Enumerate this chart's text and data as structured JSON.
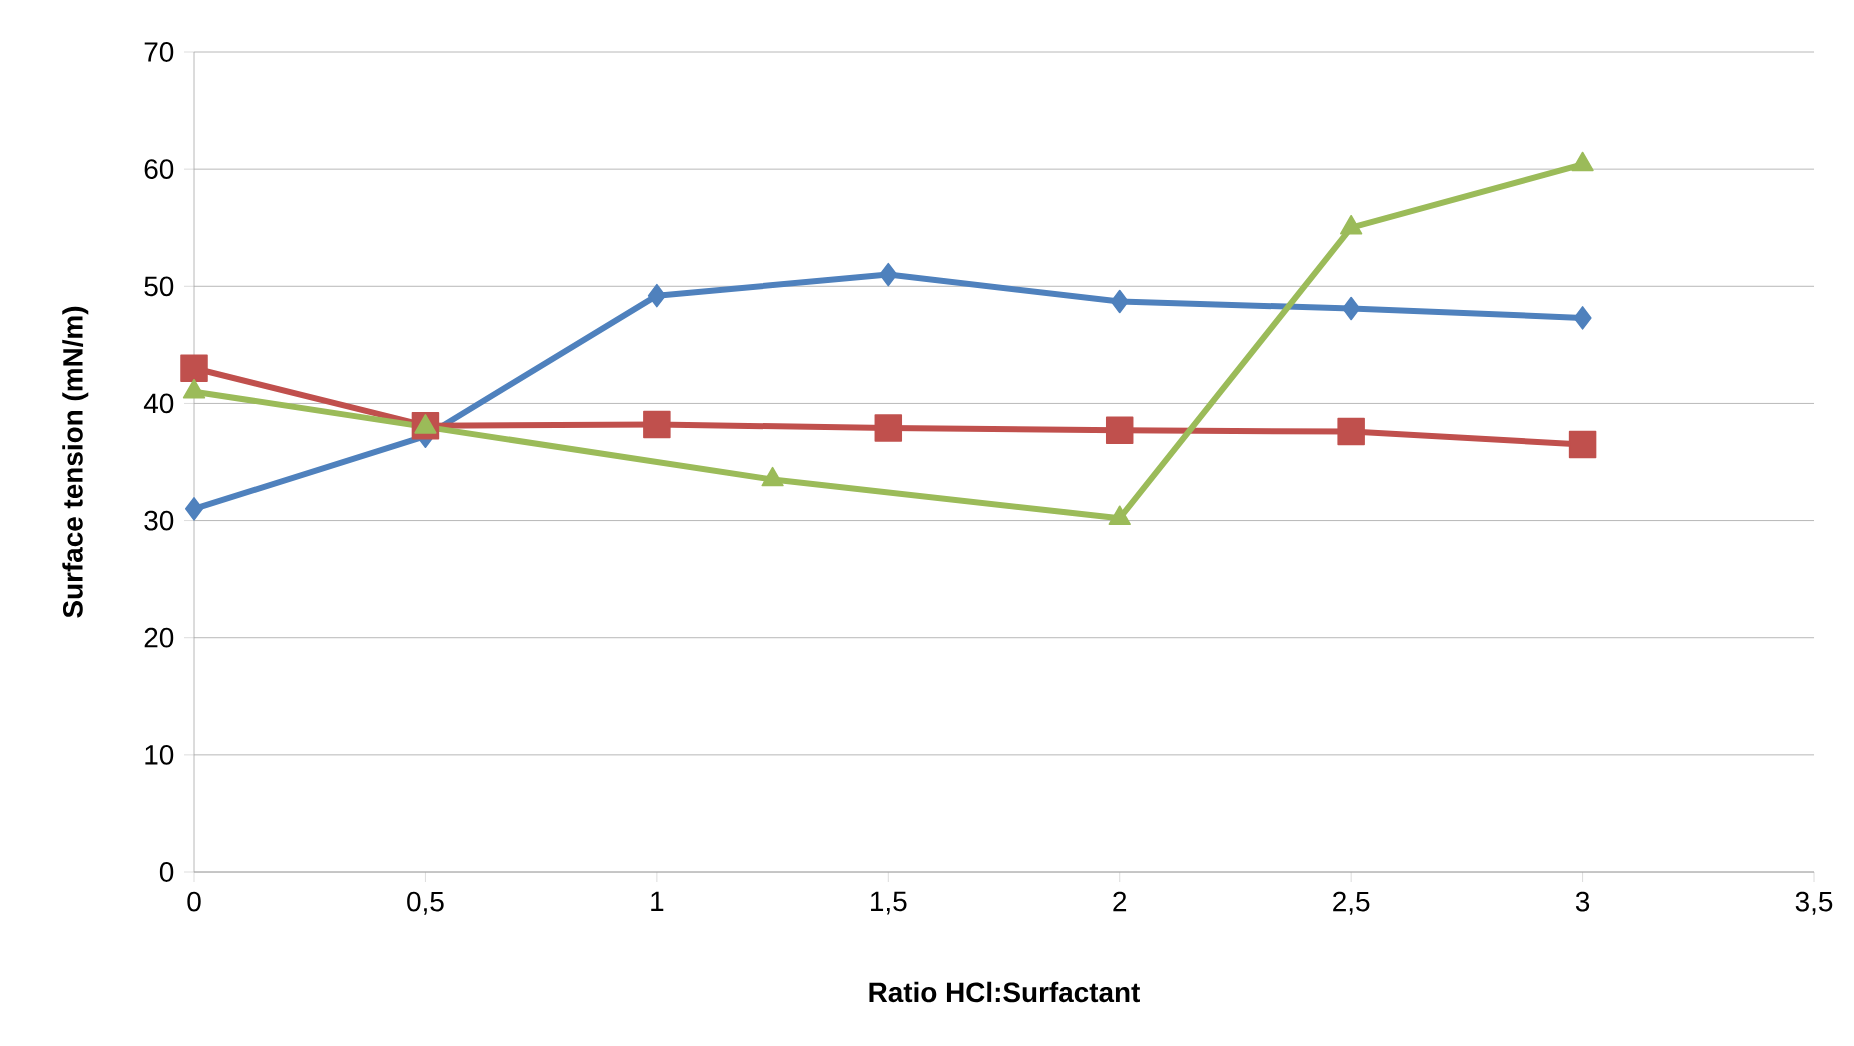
{
  "chart_data": {
    "type": "line",
    "xlabel": "Ratio HCl:Surfactant",
    "ylabel": "Surface tension (mN/m)",
    "series": [
      {
        "color": "#4f81bd",
        "marker": "diamond",
        "x": [
          0,
          0.5,
          1,
          1.5,
          2,
          2.5,
          3
        ],
        "values": [
          31,
          37.2,
          49.2,
          51,
          48.7,
          48.1,
          47.3
        ]
      },
      {
        "color": "#c0504d",
        "marker": "square",
        "x": [
          0,
          0.5,
          1,
          1.5,
          2,
          2.5,
          3
        ],
        "values": [
          43,
          38.1,
          38.2,
          37.9,
          37.7,
          37.6,
          36.5
        ]
      },
      {
        "color": "#9bbb59",
        "marker": "triangle",
        "x": [
          0,
          0.5,
          1.25,
          2,
          2.5,
          3
        ],
        "values": [
          41,
          38,
          33.5,
          30.2,
          55,
          60.4
        ]
      }
    ],
    "xlim": [
      0,
      3.5
    ],
    "ylim": [
      0,
      70
    ],
    "xticks": [
      0,
      {
        "value": 0.5,
        "label": "0,5"
      },
      1,
      {
        "value": 1.5,
        "label": "1,5"
      },
      2,
      {
        "value": 2.5,
        "label": "2,5"
      },
      3,
      {
        "value": 3.5,
        "label": "3,5"
      }
    ],
    "yticks": [
      0,
      10,
      20,
      30,
      40,
      50,
      60,
      70
    ],
    "grid": "y"
  }
}
